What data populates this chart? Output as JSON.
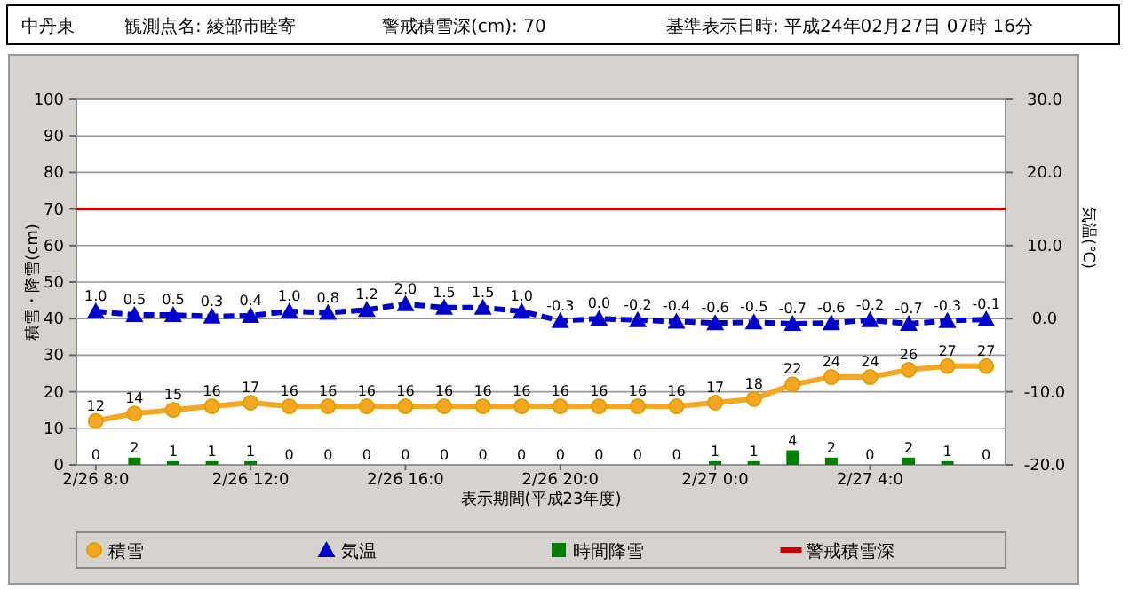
{
  "chart_data": {
    "type": "line",
    "title": "中丹東",
    "annotations": [
      "観測点名: 綾部市睦寄",
      "警戒積雪深(cm): 70",
      "基準表示日時: 平成24年02月27日 07時 16分"
    ],
    "xlabel": "表示期間(平成23年度)",
    "ylabel": "積雪・降雪(cm)",
    "y2label": "気温(℃)",
    "categories": [
      "2/26 8:0",
      null,
      null,
      null,
      "2/26 12:0",
      null,
      null,
      null,
      "2/26 16:0",
      null,
      null,
      null,
      "2/26 20:0",
      null,
      null,
      null,
      "2/27 0:0",
      null,
      null,
      null,
      "2/27 4:0",
      null,
      null,
      null
    ],
    "series": [
      {
        "name": "時間降雪",
        "type": "bar",
        "color": "#008000",
        "marker": "square",
        "values": [
          0,
          2,
          1,
          1,
          1,
          0,
          0,
          0,
          0,
          0,
          0,
          0,
          0,
          0,
          0,
          0,
          1,
          1,
          4,
          2,
          0,
          2,
          1,
          0
        ]
      },
      {
        "name": "積雪",
        "color": "#f5a623",
        "marker": "circle",
        "line_style": "solid",
        "values": [
          12,
          14,
          15,
          16,
          17,
          16,
          16,
          16,
          16,
          16,
          16,
          16,
          16,
          16,
          16,
          16,
          17,
          18,
          22,
          24,
          24,
          26,
          27,
          27
        ]
      },
      {
        "name": "気温",
        "axis": "y2",
        "color": "#0000cc",
        "marker": "triangle",
        "line_style": "dashed",
        "values": [
          1.0,
          0.5,
          0.5,
          0.3,
          0.4,
          1.0,
          0.8,
          1.2,
          2.0,
          1.5,
          1.5,
          1.0,
          -0.3,
          0.0,
          -0.2,
          -0.4,
          -0.6,
          -0.5,
          -0.7,
          -0.6,
          -0.2,
          -0.7,
          -0.3,
          -0.1
        ],
        "value_labels": [
          "1.0",
          "0.5",
          "0.5",
          "0.3",
          "0.4",
          "1.0",
          "0.8",
          "1.2",
          "2.0",
          "1.5",
          "1.5",
          "1.0",
          "-0.3",
          "0.0",
          "-0.2",
          "-0.4",
          "-0.6",
          "-0.5",
          "-0.7",
          "-0.6",
          "-0.2",
          "-0.7",
          "-0.3",
          "-0.1"
        ]
      }
    ],
    "ref_lines": [
      {
        "axis": "y",
        "value": 70,
        "label": "警戒積雪深",
        "color": "#cc0000"
      }
    ],
    "ylim": [
      0,
      100
    ],
    "yticks": [
      0,
      10,
      20,
      30,
      40,
      50,
      60,
      70,
      80,
      90,
      100
    ],
    "y2lim": [
      -20,
      30
    ],
    "y2ticks": [
      {
        "value": -20,
        "label": "-20.0"
      },
      {
        "value": -10,
        "label": "-10.0"
      },
      {
        "value": 0,
        "label": "0.0"
      },
      {
        "value": 10,
        "label": "10.0"
      },
      {
        "value": 20,
        "label": "20.0"
      },
      {
        "value": 30,
        "label": "30.0"
      }
    ],
    "grid": "y",
    "legend": "bottom",
    "data_labels": true
  }
}
